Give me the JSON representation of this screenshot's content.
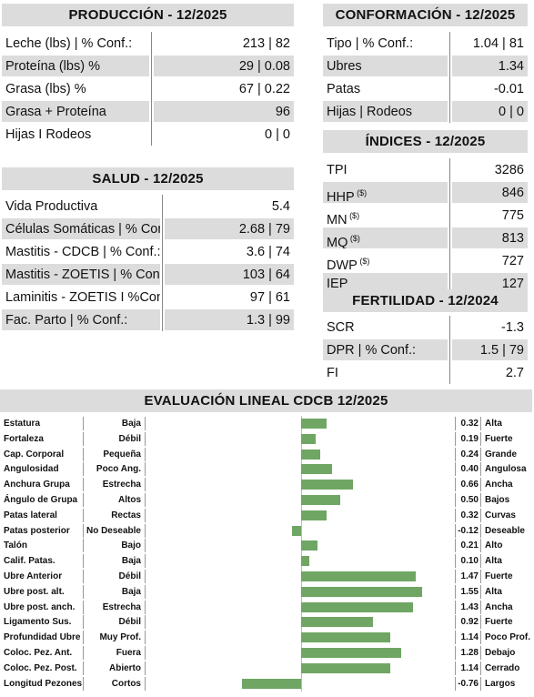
{
  "produccion": {
    "title": "PRODUCCIÓN - 12/2025",
    "rows": [
      {
        "label": "Leche (lbs) | % Conf.:",
        "value": "213 | 82"
      },
      {
        "label": "Proteína (lbs) %",
        "value": "29 | 0.08"
      },
      {
        "label": "Grasa (lbs) %",
        "value": "67 | 0.22"
      },
      {
        "label": "Grasa + Proteína",
        "value": "96"
      },
      {
        "label": "Hijas I Rodeos",
        "value": "0 | 0"
      }
    ]
  },
  "salud": {
    "title": "SALUD - 12/2025",
    "rows": [
      {
        "label": "Vida Productiva",
        "value": "5.4"
      },
      {
        "label": "Células Somáticas | % Conf.:",
        "value": "2.68 | 79"
      },
      {
        "label": "Mastitis - CDCB | % Conf.:",
        "value": "3.6 | 74"
      },
      {
        "label": "Mastitis - ZOETIS | % Conf.:",
        "value": "103 | 64"
      },
      {
        "label": "Laminitis - ZOETIS I %Conf.:",
        "value": "97 | 61"
      },
      {
        "label": "Fac. Parto | % Conf.:",
        "value": "1.3 | 99"
      }
    ]
  },
  "conformacion": {
    "title": "CONFORMACIÓN - 12/2025",
    "rows": [
      {
        "label": "Tipo | % Conf.:",
        "value": "1.04 | 81"
      },
      {
        "label": "Ubres",
        "value": "1.34"
      },
      {
        "label": "Patas",
        "value": "-0.01"
      },
      {
        "label": "Hijas | Rodeos",
        "value": "0 | 0"
      }
    ]
  },
  "indices": {
    "title": "ÍNDICES - 12/2025",
    "rows": [
      {
        "label": "TPI",
        "sup": "",
        "value": "3286"
      },
      {
        "label": "HHP",
        "sup": "($)",
        "value": "846"
      },
      {
        "label": "MN",
        "sup": "($)",
        "value": "775"
      },
      {
        "label": "MQ",
        "sup": "($)",
        "value": "813"
      },
      {
        "label": "DWP",
        "sup": "($)",
        "value": "727"
      },
      {
        "label": "IEP",
        "sup": "",
        "value": "127"
      }
    ]
  },
  "fertilidad": {
    "title": "FERTILIDAD - 12/2024",
    "rows": [
      {
        "label": "SCR",
        "value": "-1.3"
      },
      {
        "label": "DPR | % Conf.:",
        "value": "1.5 | 79"
      },
      {
        "label": "FI",
        "value": "2.7"
      }
    ]
  },
  "evaluacion": {
    "title": "EVALUACIÓN LINEAL CDCB 12/2025",
    "bar_color": "#6fa663",
    "rows": [
      {
        "trait": "Estatura",
        "low": "Baja",
        "value": 0.32,
        "label": "0.32",
        "high": "Alta"
      },
      {
        "trait": "Fortaleza",
        "low": "Débil",
        "value": 0.19,
        "label": "0.19",
        "high": "Fuerte"
      },
      {
        "trait": "Cap. Corporal",
        "low": "Pequeña",
        "value": 0.24,
        "label": "0.24",
        "high": "Grande"
      },
      {
        "trait": "Angulosidad",
        "low": "Poco Ang.",
        "value": 0.4,
        "label": "0.40",
        "high": "Angulosa"
      },
      {
        "trait": "Anchura Grupa",
        "low": "Estrecha",
        "value": 0.66,
        "label": "0.66",
        "high": "Ancha"
      },
      {
        "trait": "Ángulo de Grupa",
        "low": "Altos",
        "value": 0.5,
        "label": "0.50",
        "high": "Bajos"
      },
      {
        "trait": "Patas lateral",
        "low": "Rectas",
        "value": 0.32,
        "label": "0.32",
        "high": "Curvas"
      },
      {
        "trait": "Patas posterior",
        "low": "No Deseable",
        "value": -0.12,
        "label": "-0.12",
        "high": "Deseable"
      },
      {
        "trait": "Talón",
        "low": "Bajo",
        "value": 0.21,
        "label": "0.21",
        "high": "Alto"
      },
      {
        "trait": "Calif. Patas.",
        "low": "Baja",
        "value": 0.1,
        "label": "0.10",
        "high": "Alta"
      },
      {
        "trait": "Ubre Anterior",
        "low": "Débil",
        "value": 1.47,
        "label": "1.47",
        "high": "Fuerte"
      },
      {
        "trait": "Ubre post. alt.",
        "low": "Baja",
        "value": 1.55,
        "label": "1.55",
        "high": "Alta"
      },
      {
        "trait": "Ubre post. anch.",
        "low": "Estrecha",
        "value": 1.43,
        "label": "1.43",
        "high": "Ancha"
      },
      {
        "trait": "Ligamento Sus.",
        "low": "Débil",
        "value": 0.92,
        "label": "0.92",
        "high": "Fuerte"
      },
      {
        "trait": "Profundidad Ubre",
        "low": "Muy Prof.",
        "value": 1.14,
        "label": "1.14",
        "high": "Poco Prof."
      },
      {
        "trait": "Coloc. Pez. Ant.",
        "low": "Fuera",
        "value": 1.28,
        "label": "1.28",
        "high": "Debajo"
      },
      {
        "trait": "Coloc. Pez. Post.",
        "low": "Abierto",
        "value": 1.14,
        "label": "1.14",
        "high": "Cerrado"
      },
      {
        "trait": "Longitud Pezones",
        "low": "Cortos",
        "value": -0.76,
        "label": "-0.76",
        "high": "Largos"
      }
    ]
  }
}
